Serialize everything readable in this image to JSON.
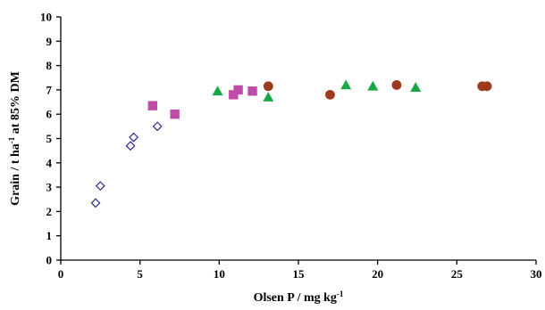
{
  "chart_data": {
    "type": "scatter",
    "title": "",
    "xlabel": "Olsen P  / mg kg-1",
    "xlabel_parts": {
      "main": "Olsen P  / mg kg",
      "sup": "-1"
    },
    "ylabel": "Grain / t ha-1 at 85% DM",
    "ylabel_parts": {
      "pre": "Grain / t ha",
      "sup": "-1",
      "post": " at 85% DM"
    },
    "xlim": [
      0,
      30
    ],
    "ylim": [
      0,
      10
    ],
    "xticks": [
      0,
      5,
      10,
      15,
      20,
      25,
      30
    ],
    "yticks": [
      0,
      1,
      2,
      3,
      4,
      5,
      6,
      7,
      8,
      9,
      10
    ],
    "grid": false,
    "legend": "none",
    "series": [
      {
        "marker": "diamond-open",
        "color": "#2b2b8c",
        "points": [
          [
            2.2,
            2.35
          ],
          [
            2.5,
            3.05
          ],
          [
            4.4,
            4.7
          ],
          [
            4.6,
            5.05
          ],
          [
            6.1,
            5.5
          ]
        ]
      },
      {
        "marker": "square",
        "color": "#c04ca8",
        "points": [
          [
            5.8,
            6.35
          ],
          [
            7.2,
            6.0
          ],
          [
            10.9,
            6.8
          ],
          [
            11.2,
            7.0
          ],
          [
            12.1,
            6.95
          ]
        ]
      },
      {
        "marker": "triangle",
        "color": "#1aa844",
        "points": [
          [
            9.9,
            6.95
          ],
          [
            13.1,
            6.7
          ],
          [
            18.0,
            7.2
          ],
          [
            19.7,
            7.15
          ],
          [
            22.4,
            7.1
          ]
        ]
      },
      {
        "marker": "circle",
        "color": "#9b3a1c",
        "points": [
          [
            13.1,
            7.15
          ],
          [
            17.0,
            6.8
          ],
          [
            21.2,
            7.2
          ],
          [
            26.6,
            7.15
          ],
          [
            26.9,
            7.15
          ]
        ]
      }
    ]
  }
}
